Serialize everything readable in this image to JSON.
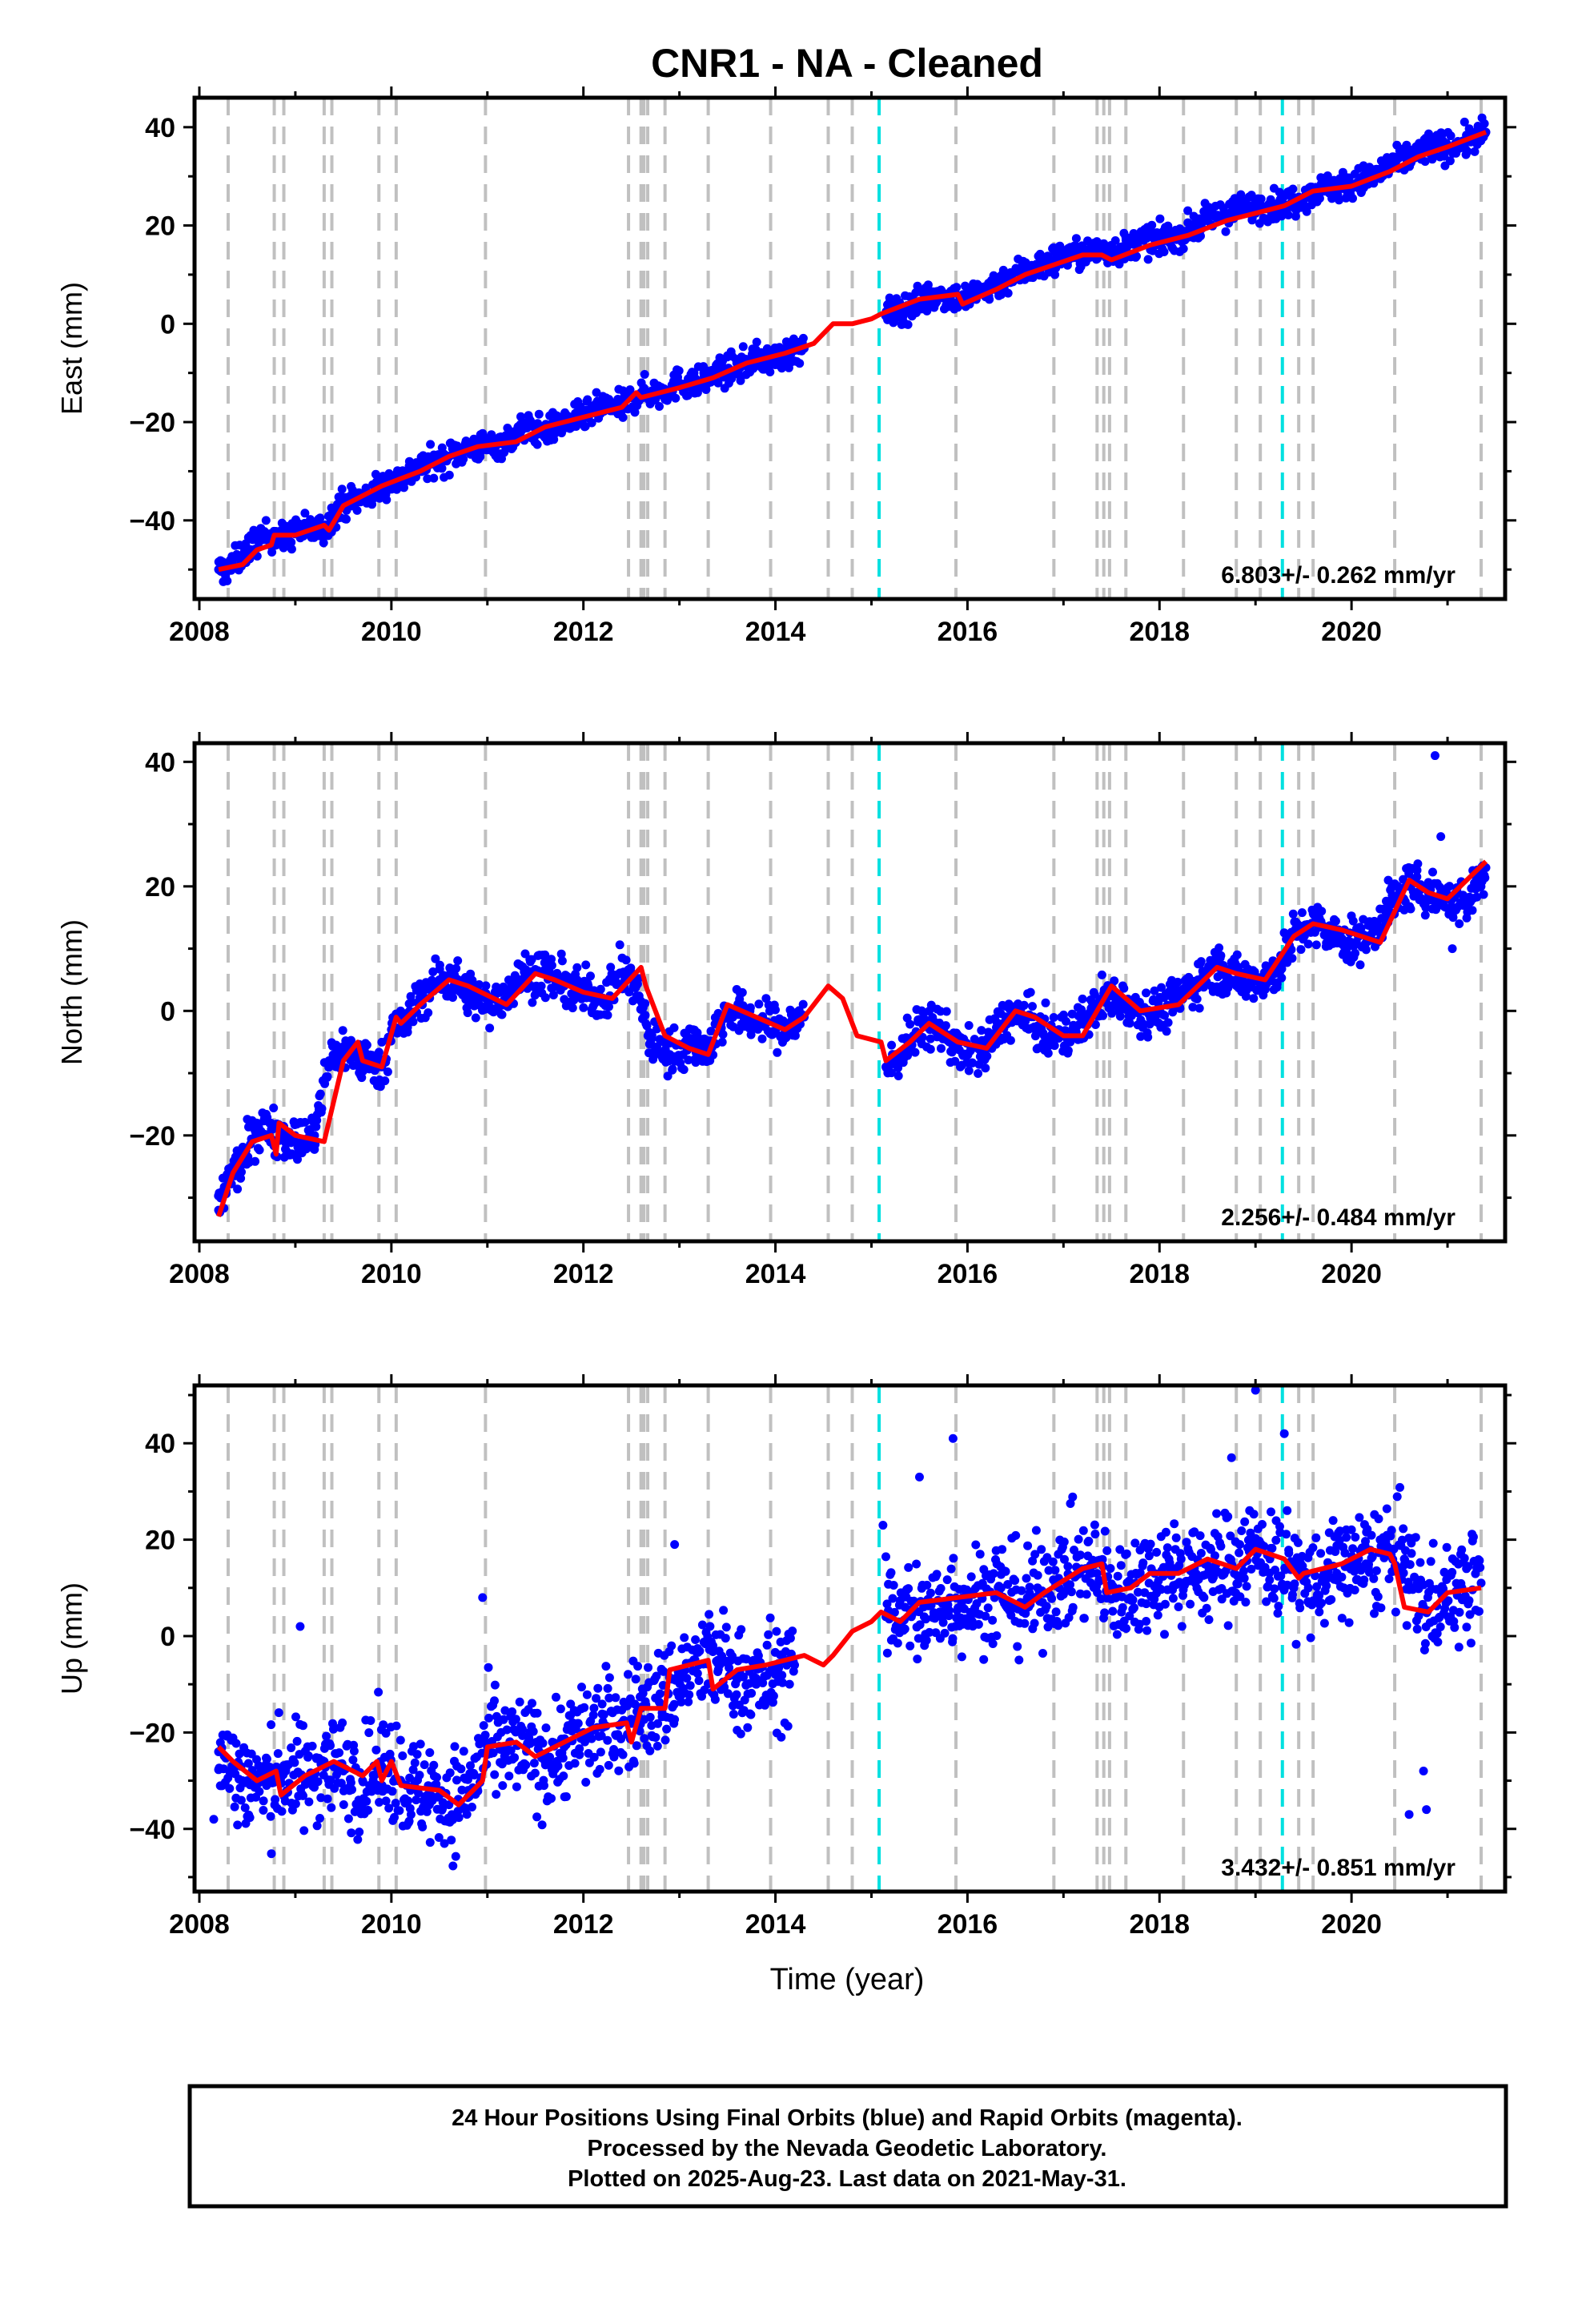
{
  "colors": {
    "final_orbits": "#0000ff",
    "model_fit": "#ff0000",
    "equipment_change": "#c0c0c0",
    "earthquake": "#00e0e0"
  },
  "chart_data": [
    {
      "type": "scatter",
      "title": "CNR1  - NA - Cleaned",
      "xlabel": "",
      "ylabel": "East (mm)",
      "xlim": [
        2007.95,
        2021.6
      ],
      "ylim": [
        -56,
        46
      ],
      "xticks": [
        2008,
        2010,
        2012,
        2014,
        2016,
        2018,
        2020
      ],
      "yticks": [
        40,
        20,
        0,
        -20,
        -40
      ],
      "rate_label": "6.803+/- 0.262 mm/yr",
      "grid": false,
      "series": [
        {
          "role": "daily positions",
          "x": [
            2008.2,
            2008.3,
            2008.45,
            2008.6,
            2008.75,
            2008.9,
            2009.0,
            2009.2,
            2009.3,
            2009.45,
            2009.6,
            2009.75,
            2009.9,
            2010.0,
            2010.15,
            2010.3,
            2010.5,
            2010.7,
            2010.9,
            2011.0,
            2011.2,
            2011.4,
            2011.6,
            2011.8,
            2012.0,
            2012.2,
            2012.4,
            2012.6,
            2012.8,
            2013.0,
            2013.2,
            2013.4,
            2013.6,
            2013.8,
            2014.0,
            2014.3,
            2015.15,
            2015.35,
            2015.55,
            2015.75,
            2015.95,
            2016.2,
            2016.4,
            2016.6,
            2016.8,
            2017.0,
            2017.2,
            2017.4,
            2017.6,
            2017.8,
            2018.0,
            2018.2,
            2018.4,
            2018.6,
            2018.8,
            2019.0,
            2019.2,
            2019.4,
            2019.6,
            2019.8,
            2020.0,
            2020.2,
            2020.4,
            2020.6,
            2020.8,
            2021.0,
            2021.2,
            2021.4
          ],
          "y": [
            -50,
            -50,
            -47,
            -44,
            -43,
            -44,
            -42,
            -42,
            -42,
            -37,
            -36,
            -35,
            -33,
            -32,
            -31,
            -29,
            -28,
            -26,
            -25,
            -25,
            -24,
            -21,
            -22,
            -20,
            -19,
            -17,
            -17,
            -14,
            -14,
            -12,
            -12,
            -10,
            -9,
            -7,
            -7,
            -5,
            2,
            3,
            5,
            6,
            5,
            7,
            9,
            11,
            12,
            14,
            14,
            15,
            15,
            17,
            17,
            18,
            20,
            22,
            23,
            24,
            24,
            25,
            27,
            28,
            28,
            30,
            32,
            34,
            36,
            36,
            37,
            39
          ]
        },
        {
          "role": "model fit",
          "x": [
            2008.2,
            2008.45,
            2008.6,
            2008.75,
            2008.78,
            2009.0,
            2009.3,
            2009.35,
            2009.5,
            2009.9,
            2010.3,
            2010.6,
            2010.9,
            2011.3,
            2011.6,
            2012.0,
            2012.4,
            2012.55,
            2012.6,
            2013.0,
            2013.35,
            2013.7,
            2014.1,
            2014.4,
            2014.6,
            2014.8,
            2015.0,
            2015.1,
            2015.5,
            2015.9,
            2015.95,
            2016.3,
            2016.6,
            2016.9,
            2017.2,
            2017.4,
            2017.5,
            2017.9,
            2018.3,
            2018.7,
            2019.1,
            2019.3,
            2019.6,
            2020.0,
            2020.4,
            2020.7,
            2021.0,
            2021.4
          ],
          "y": [
            -50,
            -49,
            -46,
            -45,
            -43,
            -43,
            -41,
            -42,
            -37,
            -33,
            -30,
            -27,
            -25,
            -24,
            -21,
            -19,
            -17,
            -14,
            -15,
            -13,
            -11,
            -8,
            -6,
            -4,
            0,
            0,
            1,
            2,
            5,
            6,
            4,
            7,
            10,
            12,
            14,
            14,
            13,
            16,
            18,
            21,
            23,
            24,
            27,
            28,
            31,
            34,
            36,
            39
          ]
        }
      ],
      "equipment_changes": [
        2008.3,
        2008.78,
        2008.88,
        2009.3,
        2009.38,
        2009.87,
        2010.05,
        2010.98,
        2012.47,
        2012.6,
        2012.63,
        2012.67,
        2012.85,
        2013.3,
        2013.95,
        2014.55,
        2014.8,
        2015.88,
        2016.9,
        2017.35,
        2017.42,
        2017.48,
        2017.65,
        2018.25,
        2018.8,
        2019.05,
        2019.45,
        2019.6,
        2020.45,
        2021.35
      ],
      "earthquakes": [
        2015.08,
        2019.28
      ]
    },
    {
      "type": "scatter",
      "title": "",
      "xlabel": "",
      "ylabel": "North (mm)",
      "xlim": [
        2007.95,
        2021.6
      ],
      "ylim": [
        -37,
        43
      ],
      "xticks": [
        2008,
        2010,
        2012,
        2014,
        2016,
        2018,
        2020
      ],
      "yticks": [
        40,
        20,
        0,
        -20
      ],
      "rate_label": "2.256+/- 0.484 mm/yr",
      "grid": false,
      "series": [
        {
          "role": "daily positions",
          "x": [
            2008.2,
            2008.3,
            2008.45,
            2008.6,
            2008.75,
            2008.9,
            2009.0,
            2009.2,
            2009.35,
            2009.5,
            2009.7,
            2009.9,
            2010.0,
            2010.15,
            2010.3,
            2010.5,
            2010.65,
            2010.8,
            2011.0,
            2011.2,
            2011.4,
            2011.6,
            2011.8,
            2012.0,
            2012.2,
            2012.4,
            2012.55,
            2012.7,
            2012.9,
            2013.1,
            2013.3,
            2013.5,
            2013.7,
            2013.9,
            2014.1,
            2014.3,
            2015.15,
            2015.35,
            2015.55,
            2015.75,
            2015.95,
            2016.2,
            2016.4,
            2016.6,
            2016.8,
            2017.0,
            2017.2,
            2017.4,
            2017.6,
            2017.8,
            2018.0,
            2018.2,
            2018.4,
            2018.6,
            2018.8,
            2019.0,
            2019.2,
            2019.4,
            2019.6,
            2019.8,
            2020.0,
            2020.2,
            2020.4,
            2020.6,
            2020.8,
            2021.0,
            2021.2,
            2021.4
          ],
          "y": [
            -32,
            -27,
            -24,
            -19,
            -19,
            -20,
            -21,
            -20,
            -8,
            -6,
            -8,
            -9,
            -3,
            -2,
            2,
            5,
            5,
            3,
            1,
            3,
            6,
            6,
            4,
            3,
            2,
            6,
            4,
            -5,
            -7,
            -5,
            -6,
            0,
            -1,
            -2,
            -3,
            -1,
            -9,
            -6,
            -2,
            -3,
            -7,
            -6,
            -1,
            -1,
            -4,
            -4,
            -2,
            2,
            2,
            0,
            0,
            2,
            5,
            7,
            5,
            5,
            6,
            12,
            14,
            12,
            11,
            12,
            17,
            20,
            19,
            18,
            17,
            23
          ]
        },
        {
          "role": "model fit",
          "x": [
            2008.2,
            2008.35,
            2008.55,
            2008.75,
            2008.8,
            2008.83,
            2009.0,
            2009.3,
            2009.5,
            2009.65,
            2009.7,
            2009.9,
            2010.05,
            2010.1,
            2010.3,
            2010.6,
            2010.8,
            2011.2,
            2011.5,
            2011.7,
            2012.0,
            2012.3,
            2012.6,
            2012.65,
            2012.85,
            2013.1,
            2013.3,
            2013.5,
            2013.8,
            2014.1,
            2014.3,
            2014.55,
            2014.7,
            2014.85,
            2015.1,
            2015.15,
            2015.4,
            2015.6,
            2015.9,
            2016.2,
            2016.5,
            2016.7,
            2017.0,
            2017.2,
            2017.5,
            2017.8,
            2018.2,
            2018.6,
            2018.8,
            2019.1,
            2019.4,
            2019.6,
            2019.9,
            2020.3,
            2020.6,
            2020.8,
            2021.0,
            2021.4
          ],
          "y": [
            -33,
            -26,
            -21,
            -20,
            -23,
            -18,
            -20,
            -21,
            -8,
            -5,
            -8,
            -9,
            -1,
            -2,
            1,
            5,
            4,
            1,
            6,
            5,
            3,
            2,
            7,
            4,
            -4,
            -6,
            -7,
            1,
            -1,
            -3,
            -1,
            4,
            2,
            -4,
            -5,
            -8,
            -5,
            -2,
            -5,
            -6,
            0,
            -1,
            -4,
            -4,
            4,
            0,
            1,
            7,
            6,
            5,
            12,
            14,
            13,
            11,
            21,
            19,
            18,
            24
          ]
        }
      ],
      "outliers": {
        "x": [
          2020.87,
          2020.93,
          2021.05
        ],
        "y": [
          41,
          28,
          10
        ]
      },
      "equipment_changes": [
        2008.3,
        2008.78,
        2008.88,
        2009.3,
        2009.38,
        2009.87,
        2010.05,
        2010.98,
        2012.47,
        2012.6,
        2012.63,
        2012.67,
        2012.85,
        2013.3,
        2013.95,
        2014.55,
        2014.8,
        2015.88,
        2016.9,
        2017.35,
        2017.42,
        2017.48,
        2017.65,
        2018.25,
        2018.8,
        2019.05,
        2019.45,
        2019.6,
        2020.45,
        2021.35
      ],
      "earthquakes": [
        2015.08,
        2019.28
      ]
    },
    {
      "type": "scatter",
      "title": "",
      "xlabel": "Time (year)",
      "ylabel": "Up (mm)",
      "xlim": [
        2007.95,
        2021.6
      ],
      "ylim": [
        -53,
        52
      ],
      "xticks": [
        2008,
        2010,
        2012,
        2014,
        2016,
        2018,
        2020
      ],
      "yticks": [
        40,
        20,
        0,
        -20,
        -40
      ],
      "rate_label": "3.432+/- 0.851 mm/yr",
      "grid": false,
      "series": [
        {
          "role": "daily positions",
          "x": [
            2008.2,
            2008.35,
            2008.5,
            2008.7,
            2008.9,
            2009.1,
            2009.3,
            2009.5,
            2009.7,
            2009.9,
            2010.0,
            2010.2,
            2010.4,
            2010.6,
            2010.8,
            2011.0,
            2011.2,
            2011.4,
            2011.6,
            2011.8,
            2012.0,
            2012.2,
            2012.4,
            2012.6,
            2012.8,
            2013.0,
            2013.2,
            2013.4,
            2013.6,
            2013.8,
            2014.0,
            2014.2,
            2015.15,
            2015.35,
            2015.55,
            2015.75,
            2015.95,
            2016.15,
            2016.35,
            2016.55,
            2016.75,
            2016.95,
            2017.15,
            2017.35,
            2017.55,
            2017.75,
            2017.95,
            2018.15,
            2018.35,
            2018.55,
            2018.75,
            2018.95,
            2019.15,
            2019.35,
            2019.55,
            2019.75,
            2019.95,
            2020.15,
            2020.35,
            2020.55,
            2020.75,
            2020.95,
            2021.15,
            2021.35
          ],
          "y": [
            -24,
            -28,
            -30,
            -31,
            -28,
            -30,
            -26,
            -28,
            -30,
            -27,
            -27,
            -32,
            -32,
            -35,
            -32,
            -23,
            -24,
            -23,
            -26,
            -23,
            -20,
            -19,
            -18,
            -15,
            -14,
            -9,
            -6,
            -5,
            -9,
            -10,
            -8,
            -6,
            4,
            6,
            4,
            7,
            8,
            8,
            10,
            7,
            9,
            12,
            14,
            13,
            8,
            11,
            13,
            14,
            13,
            14,
            15,
            18,
            16,
            14,
            10,
            12,
            15,
            15,
            17,
            16,
            6,
            8,
            10,
            11
          ]
        },
        {
          "role": "model fit",
          "x": [
            2008.2,
            2008.35,
            2008.6,
            2008.8,
            2008.85,
            2009.1,
            2009.4,
            2009.7,
            2009.85,
            2009.9,
            2010.0,
            2010.1,
            2010.5,
            2010.7,
            2010.95,
            2011.0,
            2011.3,
            2011.5,
            2011.8,
            2012.1,
            2012.45,
            2012.5,
            2012.6,
            2012.85,
            2012.9,
            2013.1,
            2013.3,
            2013.35,
            2013.6,
            2013.9,
            2014.3,
            2014.5,
            2014.6,
            2014.8,
            2015.0,
            2015.1,
            2015.3,
            2015.5,
            2015.9,
            2016.3,
            2016.6,
            2016.8,
            2017.2,
            2017.4,
            2017.45,
            2017.7,
            2017.9,
            2018.2,
            2018.5,
            2018.8,
            2019.0,
            2019.3,
            2019.45,
            2019.5,
            2019.9,
            2020.2,
            2020.4,
            2020.45,
            2020.55,
            2020.8,
            2021.0,
            2021.35
          ],
          "y": [
            -23,
            -26,
            -30,
            -28,
            -33,
            -29,
            -26,
            -29,
            -26,
            -30,
            -26,
            -31,
            -32,
            -35,
            -30,
            -23,
            -22,
            -25,
            -22,
            -19,
            -18,
            -22,
            -15,
            -15,
            -7,
            -6,
            -5,
            -11,
            -7,
            -6,
            -4,
            -6,
            -4,
            1,
            3,
            5,
            3,
            7,
            8,
            9,
            6,
            9,
            14,
            15,
            9,
            10,
            13,
            13,
            16,
            14,
            18,
            16,
            12,
            13,
            15,
            18,
            17,
            15,
            6,
            5,
            9,
            10
          ]
        }
      ],
      "outliers": {
        "x": [
          2008.15,
          2009.05,
          2010.95,
          2012.95,
          2015.12,
          2015.5,
          2015.85,
          2018.75,
          2019.0,
          2019.3,
          2020.6,
          2020.75,
          2020.78
        ],
        "y": [
          -38,
          2,
          8,
          19,
          23,
          33,
          41,
          37,
          51,
          42,
          -37,
          -28,
          -36
        ]
      },
      "equipment_changes": [
        2008.3,
        2008.78,
        2008.88,
        2009.3,
        2009.38,
        2009.87,
        2010.05,
        2010.98,
        2012.47,
        2012.6,
        2012.63,
        2012.67,
        2012.85,
        2013.3,
        2013.95,
        2014.55,
        2014.8,
        2015.88,
        2016.9,
        2017.35,
        2017.42,
        2017.48,
        2017.65,
        2018.25,
        2018.8,
        2019.05,
        2019.45,
        2019.6,
        2020.45,
        2021.35
      ],
      "earthquakes": [
        2015.08,
        2019.28
      ]
    }
  ],
  "footer": {
    "line1": "24 Hour Positions Using Final Orbits (blue) and Rapid Orbits (magenta).",
    "line2": "Processed by the Nevada Geodetic Laboratory.",
    "line3": "Plotted on 2025-Aug-23. Last data on 2021-May-31."
  }
}
